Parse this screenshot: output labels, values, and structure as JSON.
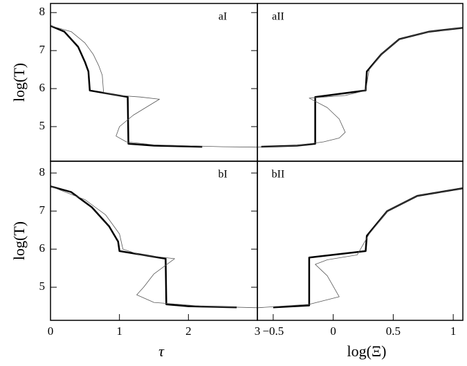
{
  "chart_data": [
    {
      "type": "line",
      "title": "aI",
      "ylabel": "log(T)",
      "xlim": [
        0,
        3
      ],
      "ylim": [
        4.09,
        8.24
      ],
      "yticks": [
        5,
        6,
        7,
        8
      ],
      "series": [
        {
          "color": "#000000",
          "linewidth": 2.5,
          "x": [
            0,
            0.2,
            0.4,
            0.5,
            0.55,
            0.57,
            1.12,
            1.13,
            1.5,
            2.2
          ],
          "y": [
            7.65,
            7.5,
            7.1,
            6.7,
            6.45,
            5.95,
            5.78,
            4.55,
            4.5,
            4.47
          ]
        },
        {
          "color": "#555555",
          "linewidth": 0.8,
          "x": [
            0,
            0.3,
            0.5,
            0.62,
            0.7,
            0.75,
            0.77,
            1.0,
            1.3,
            1.58,
            1.2,
            1.0,
            0.95,
            1.1,
            1.5,
            2.5,
            3.0
          ],
          "y": [
            7.65,
            7.5,
            7.2,
            6.9,
            6.6,
            6.35,
            5.9,
            5.82,
            5.78,
            5.72,
            5.3,
            5.0,
            4.75,
            4.6,
            4.52,
            4.47,
            4.46
          ]
        }
      ]
    },
    {
      "type": "line",
      "title": "aII",
      "xlim": [
        -0.632,
        1.08
      ],
      "ylim": [
        4.09,
        8.24
      ],
      "series": [
        {
          "color": "#000000",
          "linewidth": 2.5,
          "x": [
            -0.6,
            -0.3,
            -0.15,
            -0.15,
            0.27,
            0.28,
            0.4,
            0.55,
            0.8,
            1.08
          ],
          "y": [
            4.47,
            4.5,
            4.55,
            5.78,
            5.95,
            6.45,
            6.9,
            7.3,
            7.5,
            7.6
          ]
        },
        {
          "color": "#555555",
          "linewidth": 0.8,
          "x": [
            -0.63,
            -0.3,
            -0.08,
            0.05,
            0.1,
            0.05,
            -0.05,
            -0.2,
            0.1,
            0.27,
            0.3,
            0.4,
            0.55,
            0.8,
            1.08
          ],
          "y": [
            4.46,
            4.5,
            4.6,
            4.7,
            4.85,
            5.2,
            5.5,
            5.75,
            5.82,
            5.95,
            6.5,
            6.9,
            7.3,
            7.5,
            7.6
          ]
        }
      ]
    },
    {
      "type": "line",
      "title": "bI",
      "ylabel": "log(T)",
      "xlabel": "τ",
      "xlim": [
        0,
        3
      ],
      "ylim": [
        4.13,
        8.31
      ],
      "xticks": [
        0,
        1,
        2,
        3
      ],
      "yticks": [
        5,
        6,
        7,
        8
      ],
      "series": [
        {
          "color": "#000000",
          "linewidth": 2.5,
          "x": [
            0,
            0.3,
            0.6,
            0.85,
            0.98,
            1.0,
            1.67,
            1.68,
            2.0,
            2.7
          ],
          "y": [
            7.65,
            7.5,
            7.1,
            6.6,
            6.2,
            5.95,
            5.75,
            4.55,
            4.5,
            4.47
          ]
        },
        {
          "color": "#555555",
          "linewidth": 0.8,
          "x": [
            0,
            0.5,
            0.8,
            1.0,
            1.05,
            1.3,
            1.8,
            1.5,
            1.35,
            1.25,
            1.5,
            2.2,
            3.0
          ],
          "y": [
            7.65,
            7.3,
            6.9,
            6.4,
            6.0,
            5.85,
            5.75,
            5.35,
            5.0,
            4.8,
            4.6,
            4.5,
            4.46
          ]
        }
      ]
    },
    {
      "type": "line",
      "title": "bII",
      "xlabel": "log(Ξ)",
      "xlim": [
        -0.632,
        1.08
      ],
      "ylim": [
        4.13,
        8.31
      ],
      "xticks": [
        {
          "value": -0.5,
          "label": "−0.5"
        },
        0,
        0.5,
        1
      ],
      "series": [
        {
          "color": "#000000",
          "linewidth": 2.5,
          "x": [
            -0.5,
            -0.2,
            -0.2,
            0.27,
            0.28,
            0.45,
            0.7,
            1.08
          ],
          "y": [
            4.47,
            4.52,
            5.78,
            5.95,
            6.35,
            7.0,
            7.4,
            7.6
          ]
        },
        {
          "color": "#555555",
          "linewidth": 0.8,
          "x": [
            -0.63,
            -0.2,
            0.05,
            -0.05,
            -0.15,
            -0.05,
            0.2,
            0.3,
            0.45,
            0.7,
            1.08
          ],
          "y": [
            4.46,
            4.55,
            4.75,
            5.3,
            5.6,
            5.72,
            5.85,
            6.4,
            7.0,
            7.4,
            7.6
          ]
        }
      ]
    }
  ]
}
